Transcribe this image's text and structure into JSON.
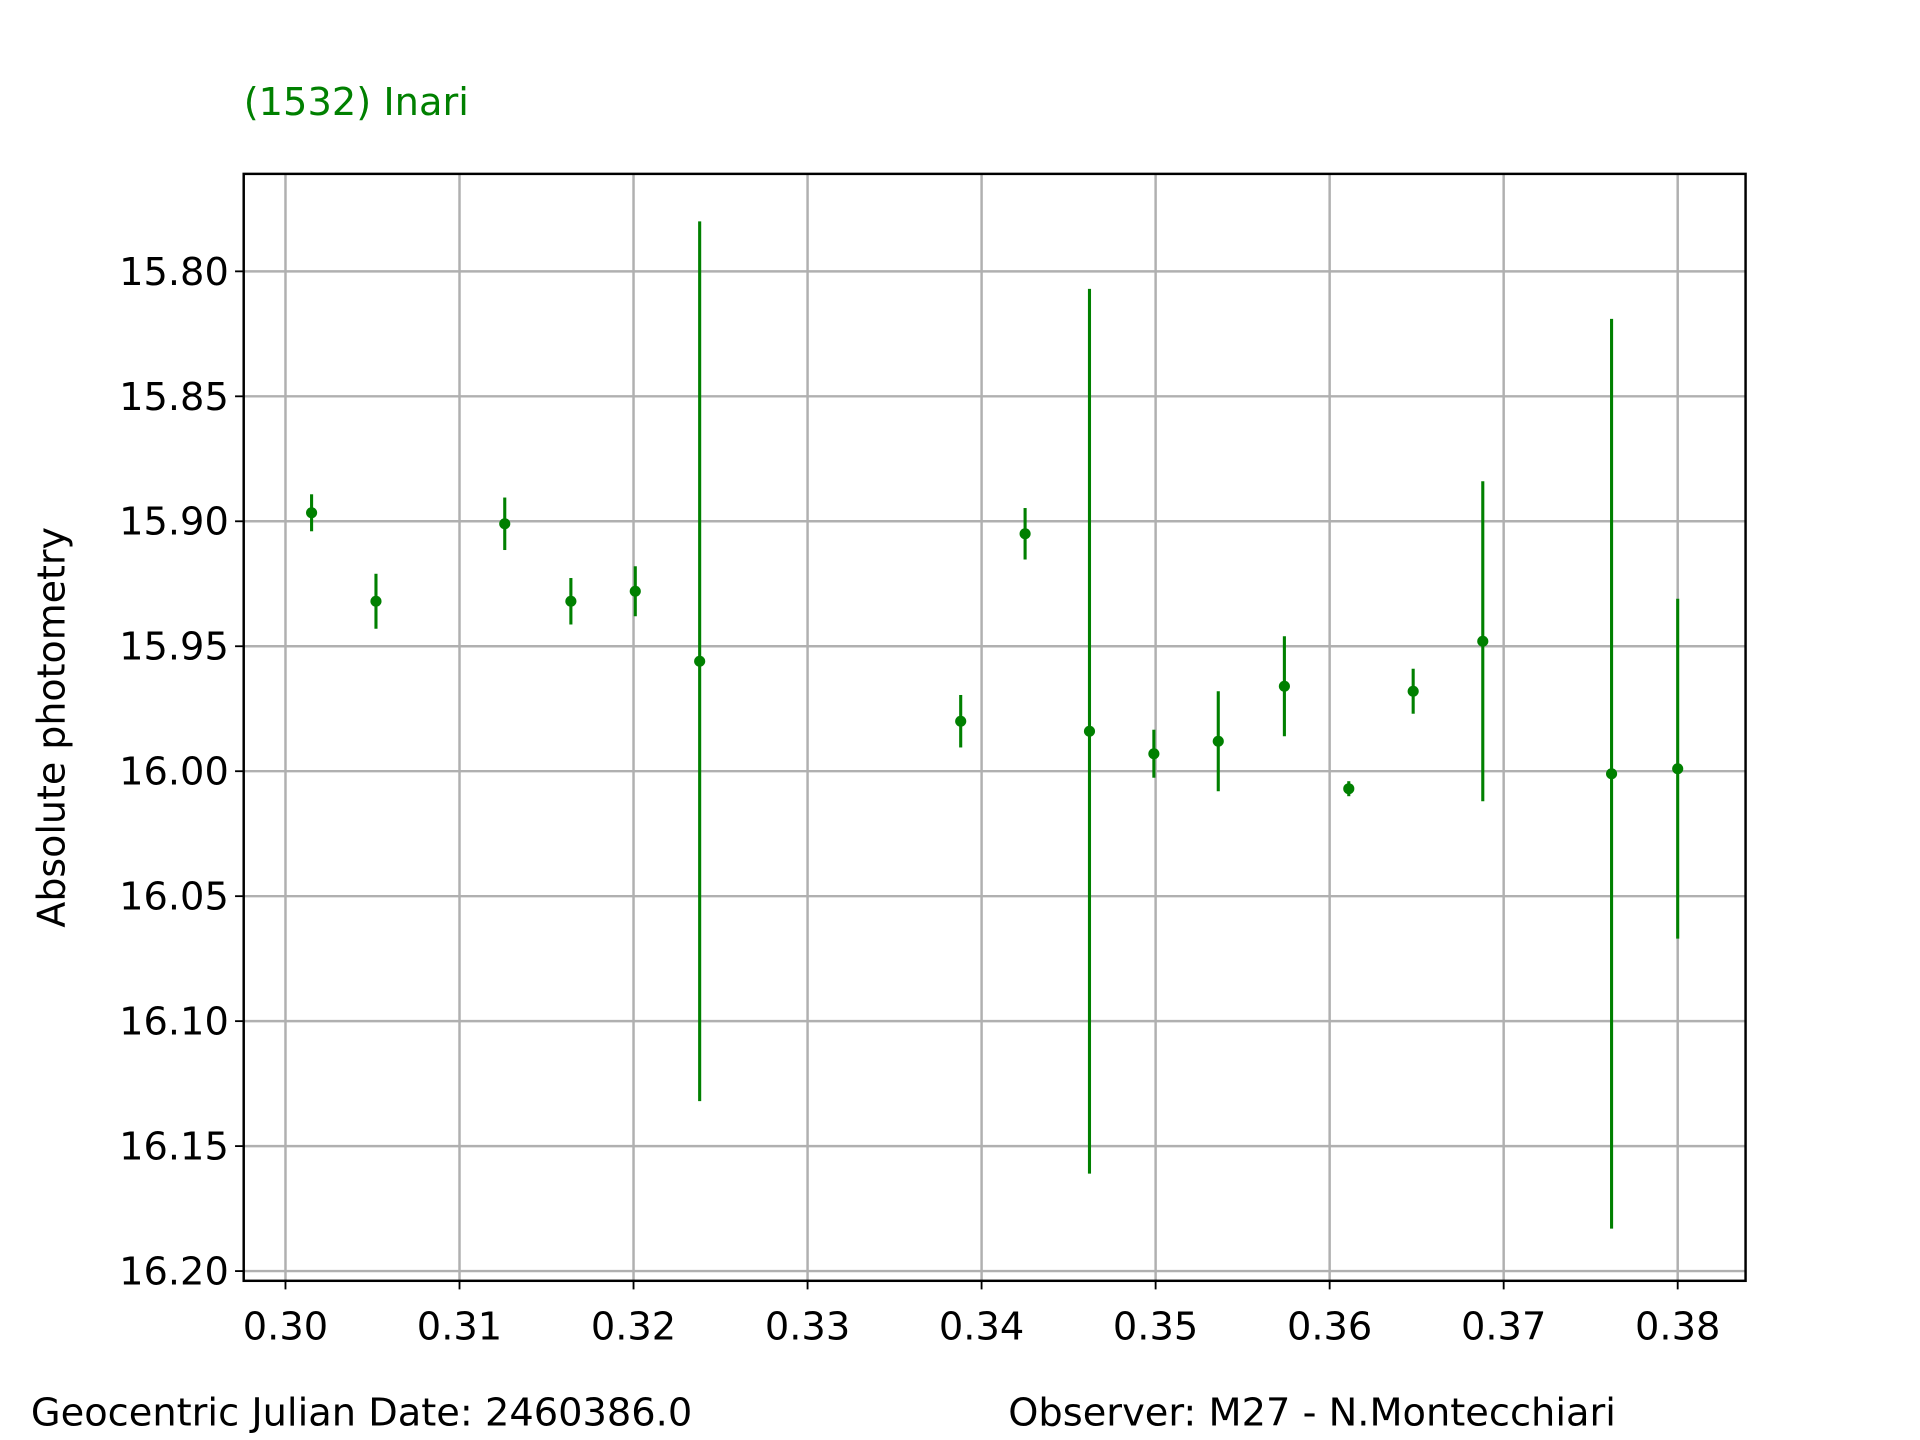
{
  "chart_data": {
    "type": "errorbar",
    "title": "(1532) Inari",
    "ylabel": "Absolute photometry",
    "annotations": [
      "Geocentric Julian Date: 2460386.0",
      "Observer: M27 - N.Montecchiari"
    ],
    "color": "#008000",
    "grid": true,
    "y_inverted": true,
    "xlim": [
      0.2976,
      0.3839
    ],
    "ylim": [
      15.761,
      16.2039
    ],
    "xticks": [
      {
        "value": 0.3,
        "label": "0.30"
      },
      {
        "value": 0.31,
        "label": "0.31"
      },
      {
        "value": 0.32,
        "label": "0.32"
      },
      {
        "value": 0.33,
        "label": "0.33"
      },
      {
        "value": 0.34,
        "label": "0.34"
      },
      {
        "value": 0.35,
        "label": "0.35"
      },
      {
        "value": 0.36,
        "label": "0.36"
      },
      {
        "value": 0.37,
        "label": "0.37"
      },
      {
        "value": 0.38,
        "label": "0.38"
      }
    ],
    "yticks": [
      {
        "value": 15.8,
        "label": "15.80"
      },
      {
        "value": 15.85,
        "label": "15.85"
      },
      {
        "value": 15.9,
        "label": "15.90"
      },
      {
        "value": 15.95,
        "label": "15.95"
      },
      {
        "value": 16.0,
        "label": "16.00"
      },
      {
        "value": 16.05,
        "label": "16.05"
      },
      {
        "value": 16.1,
        "label": "16.10"
      },
      {
        "value": 16.15,
        "label": "16.15"
      },
      {
        "value": 16.2,
        "label": "16.20"
      }
    ],
    "x": [
      0.3015,
      0.3052,
      0.3126,
      0.3164,
      0.3201,
      0.3238,
      0.3388,
      0.3425,
      0.3462,
      0.3499,
      0.3536,
      0.3574,
      0.3611,
      0.3648,
      0.3688,
      0.3762,
      0.38
    ],
    "values": [
      15.8966,
      15.932,
      15.901,
      15.932,
      15.928,
      15.956,
      15.98,
      15.905,
      15.984,
      15.993,
      15.988,
      15.966,
      16.007,
      15.968,
      15.948,
      16.001,
      15.999
    ],
    "errors": [
      0.0074,
      0.011,
      0.0105,
      0.0093,
      0.01,
      0.176,
      0.0105,
      0.0103,
      0.177,
      0.0096,
      0.02,
      0.02,
      0.003,
      0.009,
      0.064,
      0.182,
      0.068
    ]
  }
}
